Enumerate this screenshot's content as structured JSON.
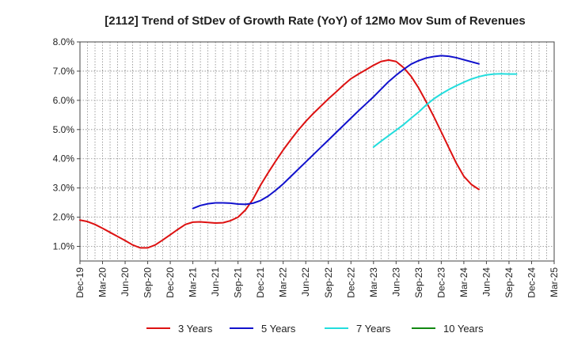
{
  "chart_data": {
    "type": "line",
    "title": "[2112]  Trend of StDev of Growth Rate (YoY) of 12Mo Mov Sum of Revenues",
    "xlabel": "",
    "ylabel": "",
    "ylim": [
      0.5,
      8.0
    ],
    "yticks": [
      1.0,
      2.0,
      3.0,
      4.0,
      5.0,
      6.0,
      7.0,
      8.0
    ],
    "ytick_labels": [
      "1.0%",
      "2.0%",
      "3.0%",
      "4.0%",
      "5.0%",
      "6.0%",
      "7.0%",
      "8.0%"
    ],
    "x_tick_labels": [
      "Dec-19",
      "Mar-20",
      "Jun-20",
      "Sep-20",
      "Dec-20",
      "Mar-21",
      "Jun-21",
      "Sep-21",
      "Dec-21",
      "Mar-22",
      "Jun-22",
      "Sep-22",
      "Dec-22",
      "Mar-23",
      "Jun-23",
      "Sep-23",
      "Dec-23",
      "Mar-24",
      "Jun-24",
      "Sep-24",
      "Dec-24",
      "Mar-25"
    ],
    "x_months": 63,
    "grid": true,
    "series": [
      {
        "name": "3 Years",
        "color": "#dd1111",
        "start": 0,
        "values": [
          1.9,
          1.85,
          1.75,
          1.62,
          1.48,
          1.34,
          1.2,
          1.05,
          0.95,
          0.95,
          1.05,
          1.22,
          1.4,
          1.58,
          1.75,
          1.83,
          1.84,
          1.82,
          1.8,
          1.81,
          1.88,
          2.0,
          2.25,
          2.62,
          3.1,
          3.52,
          3.92,
          4.3,
          4.65,
          4.98,
          5.28,
          5.55,
          5.8,
          6.05,
          6.28,
          6.52,
          6.74,
          6.9,
          7.05,
          7.2,
          7.33,
          7.38,
          7.33,
          7.12,
          6.82,
          6.42,
          5.95,
          5.45,
          4.92,
          4.38,
          3.85,
          3.4,
          3.12,
          2.95
        ]
      },
      {
        "name": "5 Years",
        "color": "#1111cc",
        "start": 15,
        "values": [
          2.3,
          2.4,
          2.46,
          2.49,
          2.49,
          2.48,
          2.45,
          2.44,
          2.48,
          2.57,
          2.72,
          2.92,
          3.14,
          3.39,
          3.64,
          3.89,
          4.14,
          4.39,
          4.64,
          4.89,
          5.14,
          5.39,
          5.64,
          5.88,
          6.12,
          6.38,
          6.64,
          6.86,
          7.06,
          7.24,
          7.36,
          7.45,
          7.5,
          7.53,
          7.51,
          7.46,
          7.39,
          7.32,
          7.25
        ]
      },
      {
        "name": "7 Years",
        "color": "#22dddd",
        "start": 39,
        "values": [
          4.4,
          4.6,
          4.79,
          4.98,
          5.17,
          5.39,
          5.6,
          5.84,
          6.05,
          6.22,
          6.37,
          6.5,
          6.62,
          6.73,
          6.81,
          6.87,
          6.9,
          6.91,
          6.9,
          6.9
        ]
      },
      {
        "name": "10 Years",
        "color": "#118811",
        "start": 0,
        "values": []
      }
    ]
  }
}
